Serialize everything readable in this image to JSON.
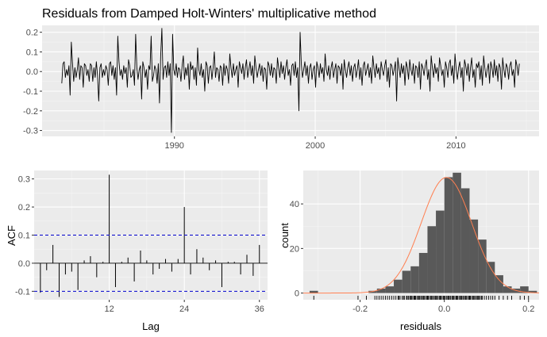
{
  "chart_data": [
    {
      "type": "line",
      "title": "Residuals from Damped Holt-Winters' multiplicative method",
      "xlabel": "",
      "ylabel": "",
      "x_start": 1982.0,
      "x_end": 2014.5,
      "xlim": [
        1980.6,
        2015.9
      ],
      "ylim": [
        -0.33,
        0.235
      ],
      "xticks": [
        1990,
        2000,
        2010
      ],
      "yticks": [
        -0.3,
        -0.2,
        -0.1,
        0.0,
        0.1,
        0.2
      ],
      "ytick_labels": [
        "-0.3",
        "-0.2",
        "-0.1",
        "0.0",
        "0.1",
        "0.2"
      ],
      "grid": true,
      "line_color": "#000000",
      "series": [
        {
          "frequency": 12,
          "values": [
            -0.06,
            0.04,
            0.05,
            -0.03,
            0.01,
            -0.02,
            0.03,
            -0.12,
            0.15,
            0.04,
            -0.05,
            0.02,
            -0.03,
            0.01,
            0.07,
            -0.04,
            0.03,
            0.02,
            -0.08,
            0.04,
            0.03,
            -0.02,
            0.01,
            -0.05,
            0.04,
            0.03,
            -0.05,
            0.02,
            -0.03,
            0.05,
            -0.02,
            -0.15,
            0.02,
            0.04,
            -0.03,
            0.01,
            -0.02,
            0.03,
            0.01,
            -0.07,
            0.04,
            0.05,
            -0.02,
            0.03,
            -0.04,
            0.02,
            -0.12,
            0.18,
            0.05,
            -0.02,
            0.01,
            -0.04,
            0.03,
            -0.01,
            0.02,
            -0.08,
            0.06,
            0.03,
            -0.03,
            -0.02,
            0.01,
            -0.07,
            0.19,
            0.02,
            -0.04,
            0.01,
            0.03,
            -0.14,
            0.05,
            0.02,
            -0.03,
            0.01,
            -0.09,
            0.03,
            0.01,
            0.18,
            -0.05,
            -0.02,
            0.03,
            0.01,
            -0.06,
            0.04,
            -0.16,
            0.08,
            0.22,
            -0.04,
            0.02,
            0.03,
            -0.03,
            0.05,
            -0.02,
            0.04,
            -0.31,
            0.19,
            0.01,
            -0.02,
            0.04,
            -0.03,
            0.02,
            0.01,
            -0.05,
            0.03,
            0.08,
            -0.04,
            0.02,
            -0.02,
            0.04,
            -0.09,
            0.05,
            0.01,
            0.03,
            -0.04,
            0.02,
            -0.07,
            0.12,
            0.01,
            -0.02,
            0.04,
            -0.03,
            0.01,
            -0.1,
            0.05,
            0.03,
            -0.06,
            0.02,
            0.03,
            -0.04,
            0.02,
            0.1,
            -0.03,
            0.02,
            0.01,
            -0.05,
            0.03,
            0.02,
            -0.07,
            0.04,
            -0.02,
            0.03,
            0.01,
            -0.06,
            0.09,
            0.02,
            -0.03,
            0.04,
            -0.02,
            0.01,
            0.03,
            -0.08,
            0.05,
            0.02,
            -0.01,
            0.04,
            -0.04,
            0.02,
            0.06,
            -0.03,
            0.01,
            0.05,
            -0.02,
            0.03,
            -0.06,
            0.08,
            0.02,
            -0.03,
            0.01,
            0.04,
            -0.02,
            0.03,
            -0.05,
            0.02,
            0.01,
            -0.09,
            0.05,
            0.03,
            -0.02,
            0.04,
            -0.03,
            0.02,
            0.01,
            -0.06,
            0.07,
            0.02,
            -0.03,
            0.05,
            -0.01,
            0.03,
            -0.04,
            0.02,
            0.06,
            -0.02,
            0.01,
            -0.07,
            0.03,
            0.04,
            -0.02,
            0.05,
            -0.03,
            0.02,
            -0.2,
            0.2,
            0.04,
            -0.03,
            0.01,
            0.05,
            -0.02,
            0.03,
            -0.06,
            0.02,
            0.04,
            -0.04,
            0.01,
            0.03,
            -0.08,
            0.05,
            0.02,
            -0.03,
            0.04,
            -0.01,
            0.02,
            -0.05,
            0.09,
            0.01,
            -0.02,
            0.03,
            -0.04,
            0.02,
            0.05,
            -0.03,
            0.01,
            0.04,
            -0.06,
            0.03,
            0.02,
            -0.02,
            0.04,
            -0.09,
            0.06,
            0.01,
            -0.03,
            0.02,
            0.05,
            -0.02,
            0.03,
            -0.05,
            0.02,
            0.04,
            -0.03,
            0.01,
            0.06,
            -0.04,
            0.02,
            -0.07,
            0.03,
            0.05,
            -0.02,
            0.01,
            0.04,
            -0.03,
            0.02,
            -0.06,
            0.08,
            0.02,
            -0.03,
            0.04,
            -0.01,
            0.02,
            -0.04,
            0.05,
            0.01,
            -0.02,
            0.03,
            0.06,
            -0.05,
            0.02,
            -0.08,
            0.04,
            0.03,
            -0.02,
            0.01,
            0.05,
            -0.15,
            0.07,
            0.02,
            -0.03,
            0.04,
            -0.01,
            0.03,
            -0.07,
            0.05,
            0.02,
            -0.04,
            0.06,
            0.01,
            -0.02,
            0.04,
            -0.06,
            0.03,
            0.02,
            -0.03,
            0.05,
            -0.09,
            0.04,
            0.02,
            -0.02,
            0.03,
            0.06,
            -0.04,
            0.01,
            -0.1,
            0.08,
            0.02,
            -0.03,
            0.04,
            -0.01,
            0.02,
            -0.05,
            0.07,
            0.03,
            -0.02,
            0.01,
            -0.08,
            0.05,
            0.02,
            -0.03,
            0.04,
            0.06,
            -0.02,
            0.03,
            -0.06,
            0.09,
            0.01,
            -0.04,
            0.02,
            0.05,
            -0.03,
            0.02,
            -0.1,
            0.06,
            0.03,
            -0.02,
            0.04,
            -0.05,
            0.02,
            0.07,
            -0.03,
            0.01,
            -0.08,
            0.04,
            0.02,
            0.05,
            -0.04,
            0.03,
            -0.07,
            0.08,
            0.02,
            -0.03,
            0.01,
            0.04,
            -0.06,
            0.05,
            0.02,
            -0.03,
            0.06,
            -0.02,
            0.03,
            -0.05,
            0.04,
            0.02,
            -0.09,
            0.07,
            0.01,
            -0.03,
            0.04,
            0.02,
            -0.04,
            0.03,
            0.05,
            -0.02,
            0.01,
            -0.08,
            0.06,
            0.03,
            -0.02,
            0.04
          ]
        }
      ]
    },
    {
      "type": "bar",
      "title": "",
      "xlabel": "Lag",
      "ylabel": "ACF",
      "xlim": [
        0.0,
        37.3
      ],
      "ylim": [
        -0.13,
        0.33
      ],
      "xticks": [
        12,
        24,
        36
      ],
      "yticks": [
        -0.1,
        0.0,
        0.1,
        0.2,
        0.3
      ],
      "ytick_labels": [
        "-0.1",
        "0.0",
        "0.1",
        "0.2",
        "0.3"
      ],
      "grid": true,
      "confidence_bound": 0.1,
      "confidence_line_color": "#0000cc",
      "lags": [
        1,
        2,
        3,
        4,
        5,
        6,
        7,
        8,
        9,
        10,
        11,
        12,
        13,
        14,
        15,
        16,
        17,
        18,
        19,
        20,
        21,
        22,
        23,
        24,
        25,
        26,
        27,
        28,
        29,
        30,
        31,
        32,
        33,
        34,
        35,
        36
      ],
      "values": [
        -0.105,
        -0.025,
        0.065,
        -0.12,
        -0.04,
        -0.03,
        -0.095,
        0.01,
        0.025,
        -0.05,
        0.005,
        0.315,
        -0.085,
        0.005,
        0.02,
        -0.065,
        0.045,
        0.01,
        -0.04,
        -0.02,
        0.015,
        -0.03,
        0.015,
        0.2,
        -0.04,
        0.05,
        0.02,
        -0.025,
        0.01,
        -0.085,
        0.005,
        0.005,
        -0.04,
        0.03,
        -0.045,
        0.065
      ]
    },
    {
      "type": "histogram",
      "title": "",
      "xlabel": "residuals",
      "ylabel": "count",
      "xlim": [
        -0.335,
        0.225
      ],
      "ylim": [
        -3,
        55
      ],
      "xticks": [
        -0.2,
        0.0,
        0.2
      ],
      "xtick_labels": [
        "-0.2",
        "0.0",
        "0.2"
      ],
      "yticks": [
        0,
        20,
        40
      ],
      "grid": true,
      "bar_color": "#595959",
      "curve_color": "#ff7f50",
      "bin_width": 0.02,
      "bin_starts": [
        -0.32,
        -0.3,
        -0.28,
        -0.26,
        -0.24,
        -0.22,
        -0.2,
        -0.18,
        -0.16,
        -0.14,
        -0.12,
        -0.1,
        -0.08,
        -0.06,
        -0.04,
        -0.02,
        0.0,
        0.02,
        0.04,
        0.06,
        0.08,
        0.1,
        0.12,
        0.14,
        0.16,
        0.18,
        0.2
      ],
      "counts": [
        1,
        0,
        0,
        0,
        0,
        0,
        0,
        1,
        2,
        3,
        6,
        10,
        12,
        18,
        30,
        37,
        52,
        54,
        47,
        33,
        24,
        14,
        8,
        3,
        2,
        3,
        1
      ],
      "normal_curve": {
        "mean": 0.005,
        "sd": 0.06,
        "n": 390
      },
      "rug": [
        -0.31,
        -0.205,
        -0.185,
        -0.165,
        -0.16,
        -0.155,
        -0.15,
        -0.145,
        -0.14,
        -0.135,
        -0.13,
        -0.125,
        -0.12,
        -0.115,
        -0.11,
        -0.108,
        -0.105,
        -0.1,
        -0.097,
        -0.095,
        -0.09,
        -0.088,
        -0.085,
        -0.082,
        -0.08,
        -0.078,
        -0.075,
        -0.072,
        -0.07,
        -0.068,
        -0.065,
        -0.062,
        -0.06,
        -0.058,
        -0.055,
        -0.052,
        -0.05,
        -0.048,
        -0.045,
        -0.042,
        -0.04,
        -0.038,
        -0.035,
        -0.032,
        -0.03,
        -0.028,
        -0.025,
        -0.022,
        -0.02,
        -0.018,
        -0.015,
        -0.012,
        -0.01,
        -0.008,
        -0.005,
        -0.002,
        0.0,
        0.002,
        0.005,
        0.008,
        0.01,
        0.012,
        0.015,
        0.018,
        0.02,
        0.022,
        0.025,
        0.028,
        0.03,
        0.032,
        0.035,
        0.038,
        0.04,
        0.042,
        0.045,
        0.048,
        0.05,
        0.052,
        0.055,
        0.058,
        0.06,
        0.062,
        0.065,
        0.068,
        0.07,
        0.072,
        0.075,
        0.078,
        0.08,
        0.082,
        0.085,
        0.088,
        0.09,
        0.095,
        0.1,
        0.105,
        0.11,
        0.115,
        0.12,
        0.13,
        0.14,
        0.15,
        0.16,
        0.18,
        0.19,
        0.2
      ]
    }
  ]
}
